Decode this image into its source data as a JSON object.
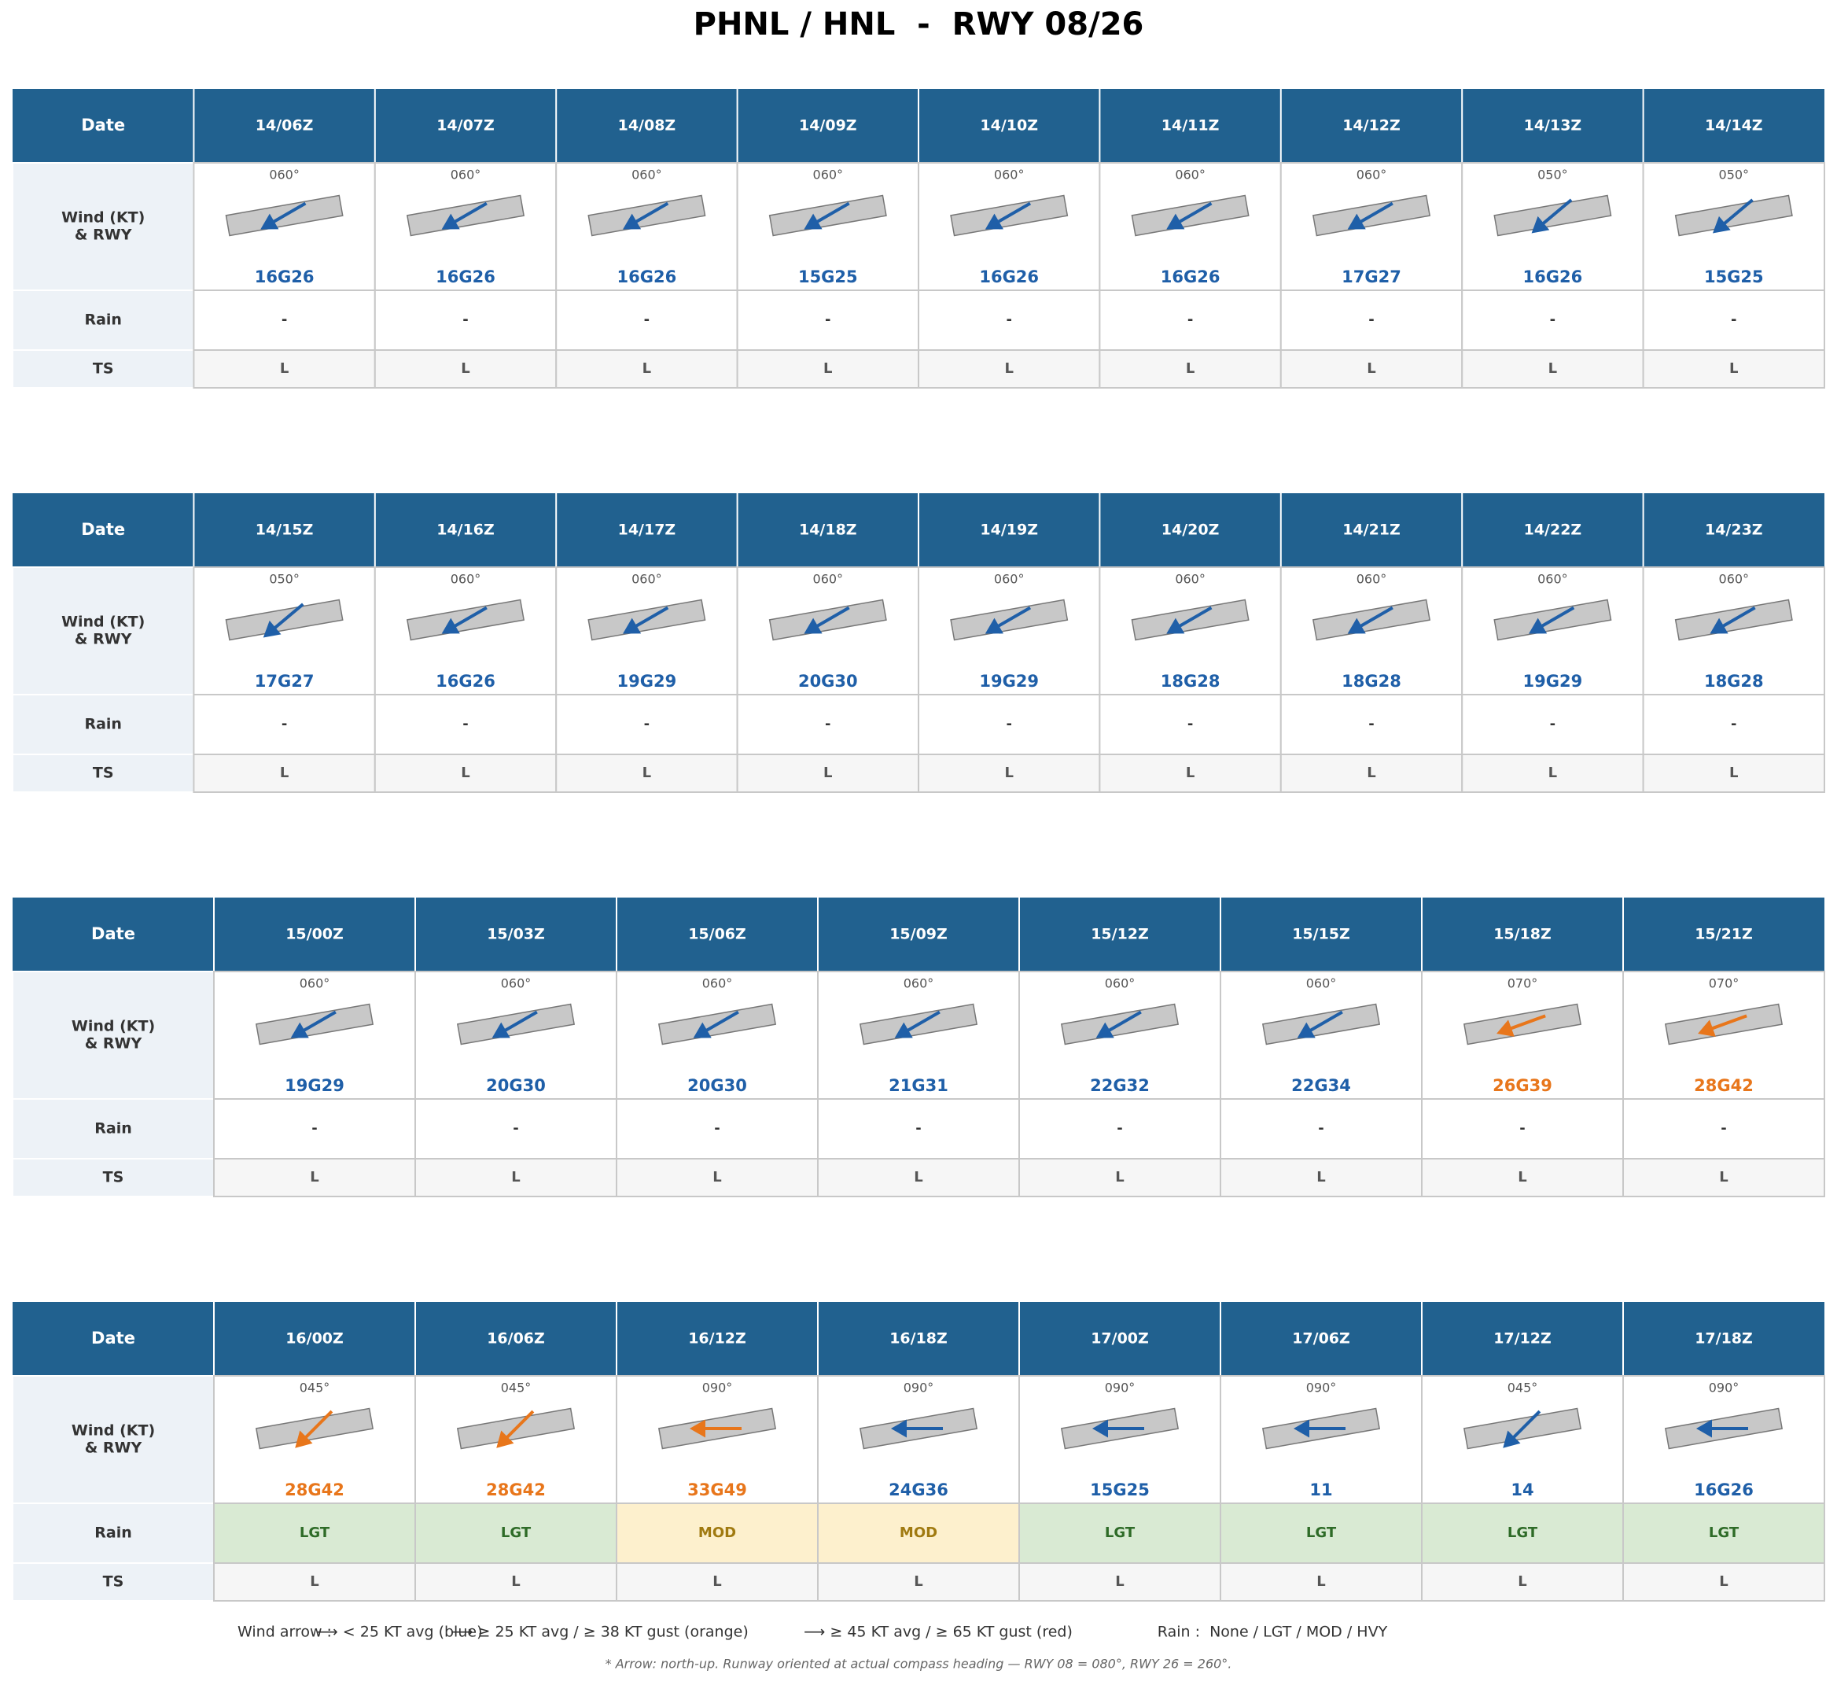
{
  "title": "PHNL / HNL  -  RWY 08/26",
  "row_labels": {
    "date": "Date",
    "wind": [
      "Wind (KT)",
      "& RWY"
    ],
    "rain": "Rain",
    "ts": "TS"
  },
  "rain_styles": {
    "LGT": {
      "fill": "#d9ead3",
      "color": "#2e6b27"
    },
    "MOD": {
      "fill": "#fdf0cd",
      "color": "#a07a10"
    }
  },
  "blocks": [
    {
      "columns": [
        {
          "date": "14/06Z",
          "dir": {
            "value": 60,
            "label": "060°"
          },
          "wind": "16G26",
          "color": "#1f5fa8",
          "rain": "-",
          "ts": "L"
        },
        {
          "date": "14/07Z",
          "dir": {
            "value": 60,
            "label": "060°"
          },
          "wind": "16G26",
          "color": "#1f5fa8",
          "rain": "-",
          "ts": "L"
        },
        {
          "date": "14/08Z",
          "dir": {
            "value": 60,
            "label": "060°"
          },
          "wind": "16G26",
          "color": "#1f5fa8",
          "rain": "-",
          "ts": "L"
        },
        {
          "date": "14/09Z",
          "dir": {
            "value": 60,
            "label": "060°"
          },
          "wind": "15G25",
          "color": "#1f5fa8",
          "rain": "-",
          "ts": "L"
        },
        {
          "date": "14/10Z",
          "dir": {
            "value": 60,
            "label": "060°"
          },
          "wind": "16G26",
          "color": "#1f5fa8",
          "rain": "-",
          "ts": "L"
        },
        {
          "date": "14/11Z",
          "dir": {
            "value": 60,
            "label": "060°"
          },
          "wind": "16G26",
          "color": "#1f5fa8",
          "rain": "-",
          "ts": "L"
        },
        {
          "date": "14/12Z",
          "dir": {
            "value": 60,
            "label": "060°"
          },
          "wind": "17G27",
          "color": "#1f5fa8",
          "rain": "-",
          "ts": "L"
        },
        {
          "date": "14/13Z",
          "dir": {
            "value": 50,
            "label": "050°"
          },
          "wind": "16G26",
          "color": "#1f5fa8",
          "rain": "-",
          "ts": "L"
        },
        {
          "date": "14/14Z",
          "dir": {
            "value": 50,
            "label": "050°"
          },
          "wind": "15G25",
          "color": "#1f5fa8",
          "rain": "-",
          "ts": "L"
        }
      ]
    },
    {
      "columns": [
        {
          "date": "14/15Z",
          "dir": {
            "value": 50,
            "label": "050°"
          },
          "wind": "17G27",
          "color": "#1f5fa8",
          "rain": "-",
          "ts": "L"
        },
        {
          "date": "14/16Z",
          "dir": {
            "value": 60,
            "label": "060°"
          },
          "wind": "16G26",
          "color": "#1f5fa8",
          "rain": "-",
          "ts": "L"
        },
        {
          "date": "14/17Z",
          "dir": {
            "value": 60,
            "label": "060°"
          },
          "wind": "19G29",
          "color": "#1f5fa8",
          "rain": "-",
          "ts": "L"
        },
        {
          "date": "14/18Z",
          "dir": {
            "value": 60,
            "label": "060°"
          },
          "wind": "20G30",
          "color": "#1f5fa8",
          "rain": "-",
          "ts": "L"
        },
        {
          "date": "14/19Z",
          "dir": {
            "value": 60,
            "label": "060°"
          },
          "wind": "19G29",
          "color": "#1f5fa8",
          "rain": "-",
          "ts": "L"
        },
        {
          "date": "14/20Z",
          "dir": {
            "value": 60,
            "label": "060°"
          },
          "wind": "18G28",
          "color": "#1f5fa8",
          "rain": "-",
          "ts": "L"
        },
        {
          "date": "14/21Z",
          "dir": {
            "value": 60,
            "label": "060°"
          },
          "wind": "18G28",
          "color": "#1f5fa8",
          "rain": "-",
          "ts": "L"
        },
        {
          "date": "14/22Z",
          "dir": {
            "value": 60,
            "label": "060°"
          },
          "wind": "19G29",
          "color": "#1f5fa8",
          "rain": "-",
          "ts": "L"
        },
        {
          "date": "14/23Z",
          "dir": {
            "value": 60,
            "label": "060°"
          },
          "wind": "18G28",
          "color": "#1f5fa8",
          "rain": "-",
          "ts": "L"
        }
      ]
    },
    {
      "columns": [
        {
          "date": "15/00Z",
          "dir": {
            "value": 60,
            "label": "060°"
          },
          "wind": "19G29",
          "color": "#1f5fa8",
          "rain": "-",
          "ts": "L"
        },
        {
          "date": "15/03Z",
          "dir": {
            "value": 60,
            "label": "060°"
          },
          "wind": "20G30",
          "color": "#1f5fa8",
          "rain": "-",
          "ts": "L"
        },
        {
          "date": "15/06Z",
          "dir": {
            "value": 60,
            "label": "060°"
          },
          "wind": "20G30",
          "color": "#1f5fa8",
          "rain": "-",
          "ts": "L"
        },
        {
          "date": "15/09Z",
          "dir": {
            "value": 60,
            "label": "060°"
          },
          "wind": "21G31",
          "color": "#1f5fa8",
          "rain": "-",
          "ts": "L"
        },
        {
          "date": "15/12Z",
          "dir": {
            "value": 60,
            "label": "060°"
          },
          "wind": "22G32",
          "color": "#1f5fa8",
          "rain": "-",
          "ts": "L"
        },
        {
          "date": "15/15Z",
          "dir": {
            "value": 60,
            "label": "060°"
          },
          "wind": "22G34",
          "color": "#1f5fa8",
          "rain": "-",
          "ts": "L"
        },
        {
          "date": "15/18Z",
          "dir": {
            "value": 70,
            "label": "070°"
          },
          "wind": "26G39",
          "color": "#e8761b",
          "rain": "-",
          "ts": "L"
        },
        {
          "date": "15/21Z",
          "dir": {
            "value": 70,
            "label": "070°"
          },
          "wind": "28G42",
          "color": "#e8761b",
          "rain": "-",
          "ts": "L"
        }
      ]
    },
    {
      "columns": [
        {
          "date": "16/00Z",
          "dir": {
            "value": 45,
            "label": "045°"
          },
          "wind": "28G42",
          "color": "#e8761b",
          "rain": "LGT",
          "ts": "L"
        },
        {
          "date": "16/06Z",
          "dir": {
            "value": 45,
            "label": "045°"
          },
          "wind": "28G42",
          "color": "#e8761b",
          "rain": "LGT",
          "ts": "L"
        },
        {
          "date": "16/12Z",
          "dir": {
            "value": 90,
            "label": "090°"
          },
          "wind": "33G49",
          "color": "#e8761b",
          "rain": "MOD",
          "ts": "L"
        },
        {
          "date": "16/18Z",
          "dir": {
            "value": 90,
            "label": "090°"
          },
          "wind": "24G36",
          "color": "#1f5fa8",
          "rain": "MOD",
          "ts": "L"
        },
        {
          "date": "17/00Z",
          "dir": {
            "value": 90,
            "label": "090°"
          },
          "wind": "15G25",
          "color": "#1f5fa8",
          "rain": "LGT",
          "ts": "L"
        },
        {
          "date": "17/06Z",
          "dir": {
            "value": 90,
            "label": "090°"
          },
          "wind": "11",
          "color": "#1f5fa8",
          "rain": "LGT",
          "ts": "L"
        },
        {
          "date": "17/12Z",
          "dir": {
            "value": 45,
            "label": "045°"
          },
          "wind": "14",
          "color": "#1f5fa8",
          "rain": "LGT",
          "ts": "L"
        },
        {
          "date": "17/18Z",
          "dir": {
            "value": 90,
            "label": "090°"
          },
          "wind": "16G26",
          "color": "#1f5fa8",
          "rain": "LGT",
          "ts": "L"
        }
      ]
    }
  ],
  "legend": [
    "Wind arrow :",
    "⟶ < 25 KT avg (blue)",
    "⟶ ≥ 25 KT avg / ≥ 38 KT gust (orange)",
    "⟶ ≥ 45 KT avg / ≥ 65 KT gust (red)",
    "Rain :  None / LGT / MOD / HVY"
  ],
  "footnote": "* Arrow: north-up. Runway oriented at actual compass heading — RWY 08 = 080°, RWY 26 = 260°."
}
